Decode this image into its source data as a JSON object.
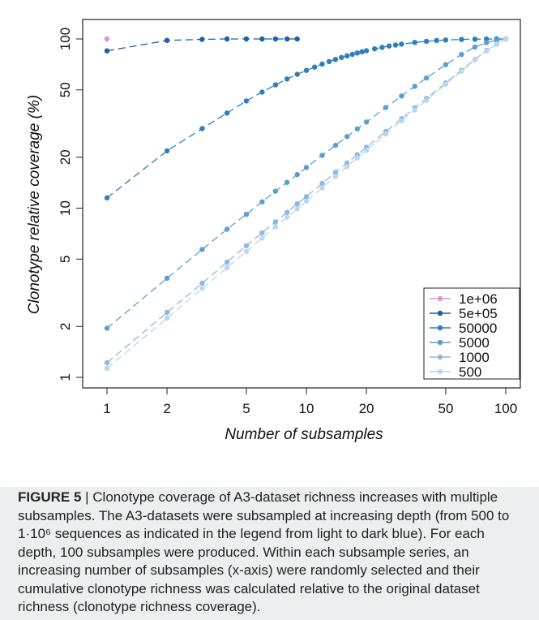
{
  "chart_data": {
    "type": "line",
    "xlabel": "Number of subsamples",
    "ylabel": "Clonotype relative coverage (%)",
    "xscale": "log",
    "yscale": "log",
    "xlim": [
      1,
      100
    ],
    "ylim": [
      1,
      100
    ],
    "xticks": [
      1,
      2,
      5,
      10,
      20,
      50,
      100
    ],
    "yticks": [
      1,
      2,
      5,
      10,
      20,
      50,
      100
    ],
    "legend_position": "bottom-right",
    "series": [
      {
        "name": "1e+06",
        "color": "#e58fe0",
        "points": [
          [
            1,
            100
          ]
        ]
      },
      {
        "name": "5e+05",
        "color": "#1f5fa6",
        "points": [
          [
            1,
            85
          ],
          [
            2,
            98
          ],
          [
            3,
            99.5
          ],
          [
            4,
            100
          ],
          [
            5,
            100
          ],
          [
            6,
            100
          ],
          [
            7,
            100
          ],
          [
            8,
            100
          ],
          [
            9,
            100
          ]
        ]
      },
      {
        "name": "50000",
        "color": "#2f7fbf",
        "x": [
          1,
          2,
          3,
          4,
          5,
          6,
          7,
          8,
          9,
          10,
          11,
          12,
          13,
          14,
          15,
          16,
          17,
          18,
          19,
          20,
          22,
          24,
          26,
          28,
          30,
          35,
          40,
          45,
          50,
          60,
          70,
          80,
          90,
          100
        ],
        "y": [
          11.5,
          21.8,
          29.5,
          36.5,
          43,
          48.5,
          53.5,
          58,
          61.8,
          65.2,
          68.2,
          71,
          73.5,
          75.7,
          77.7,
          79.5,
          81.1,
          82.6,
          84,
          85.2,
          87.4,
          89.2,
          90.8,
          92.1,
          93.2,
          95.4,
          96.9,
          97.9,
          98.6,
          99.3,
          99.7,
          99.9,
          100,
          100
        ]
      },
      {
        "name": "5000",
        "color": "#5b9fd1",
        "x": [
          1,
          2,
          3,
          4,
          5,
          6,
          7,
          8,
          9,
          10,
          12,
          14,
          16,
          18,
          20,
          25,
          30,
          35,
          40,
          50,
          60,
          70,
          80,
          90,
          100
        ],
        "y": [
          1.95,
          3.85,
          5.7,
          7.5,
          9.2,
          10.9,
          12.6,
          14.2,
          15.8,
          17.4,
          20.5,
          23.5,
          26.5,
          29.4,
          32.3,
          39.3,
          46,
          52.5,
          58.8,
          70.5,
          81,
          89.5,
          95,
          98.5,
          100
        ]
      },
      {
        "name": "1000",
        "color": "#8db9df",
        "x": [
          1,
          2,
          3,
          4,
          5,
          6,
          7,
          8,
          9,
          10,
          12,
          14,
          16,
          18,
          20,
          25,
          30,
          35,
          40,
          50,
          60,
          70,
          80,
          90,
          100
        ],
        "y": [
          1.22,
          2.42,
          3.6,
          4.8,
          6.0,
          7.15,
          8.3,
          9.45,
          10.6,
          11.7,
          14,
          16.3,
          18.5,
          20.7,
          22.9,
          28.4,
          33.8,
          39.2,
          44.5,
          55,
          65.4,
          75.6,
          85.6,
          93.5,
          100
        ]
      },
      {
        "name": "500",
        "color": "#bcd6ee",
        "x": [
          1,
          2,
          3,
          4,
          5,
          6,
          7,
          8,
          9,
          10,
          12,
          14,
          16,
          18,
          20,
          25,
          30,
          35,
          40,
          50,
          60,
          70,
          80,
          90,
          100
        ],
        "y": [
          1.13,
          2.24,
          3.35,
          4.45,
          5.55,
          6.65,
          7.75,
          8.85,
          9.9,
          11,
          13.2,
          15.4,
          17.6,
          19.8,
          22,
          27.4,
          32.8,
          38.1,
          43.4,
          54,
          64.5,
          75,
          85,
          93,
          100
        ]
      }
    ]
  },
  "caption": {
    "figure_label": "FIGURE 5",
    "text": " | Clonotype coverage of A3-dataset richness increases with multiple subsamples. The A3-datasets were subsampled at increasing depth (from 500 to 1·10⁶ sequences as indicated in the legend from light to dark blue). For each depth, 100 subsamples were produced. Within each subsample series, an increasing number of subsamples (x-axis) were randomly selected and their cumulative clonotype richness was calculated relative to the original dataset richness (clonotype richness coverage)."
  }
}
